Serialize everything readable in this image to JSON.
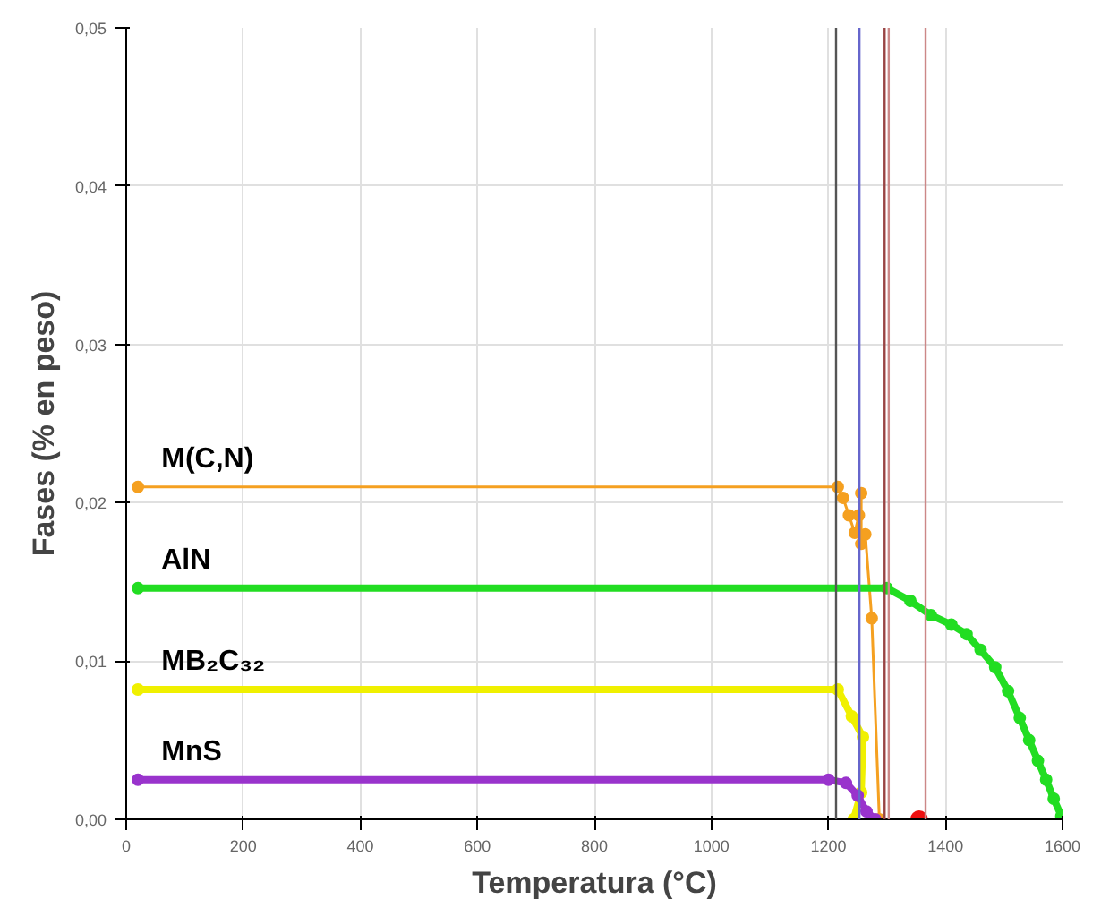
{
  "chart_data": {
    "type": "line",
    "xlabel": "Temperatura (°C)",
    "ylabel": "Fases (% en peso)",
    "xlim": [
      0,
      1600
    ],
    "ylim": [
      0,
      0.05
    ],
    "xticks": [
      0,
      200,
      400,
      600,
      800,
      1000,
      1200,
      1400,
      1600
    ],
    "yticks": [
      {
        "value": 0,
        "label": "0,00"
      },
      {
        "value": 0.01,
        "label": "0,01"
      },
      {
        "value": 0.02,
        "label": "0,02"
      },
      {
        "value": 0.03,
        "label": "0,03"
      },
      {
        "value": 0.04,
        "label": "0,04"
      },
      {
        "value": 0.05,
        "label": "0,05"
      }
    ],
    "grid": true,
    "marker": "circle",
    "line_style": "solid",
    "series": [
      {
        "name": "M(C,N)",
        "color": "#f5a020",
        "x": [
          20,
          1216,
          1225,
          1235,
          1245,
          1252,
          1256,
          1256,
          1263,
          1274,
          1287
        ],
        "values": [
          0.021,
          0.021,
          0.0203,
          0.0192,
          0.0181,
          0.0192,
          0.0206,
          0.0174,
          0.018,
          0.0127,
          0
        ]
      },
      {
        "name": "AlN",
        "color": "#22dd22",
        "x": [
          20,
          1300,
          1340,
          1375,
          1410,
          1436,
          1460,
          1485,
          1507,
          1527,
          1543,
          1558,
          1572,
          1585,
          1598
        ],
        "values": [
          0.0146,
          0.0146,
          0.0138,
          0.0129,
          0.0123,
          0.0117,
          0.0107,
          0.0096,
          0.0081,
          0.0064,
          0.005,
          0.0037,
          0.0025,
          0.0013,
          0.0002
        ]
      },
      {
        "name": "MB₂C₃₂",
        "color": "#f0f000",
        "x": [
          20,
          1216,
          1240,
          1259,
          1256,
          1243
        ],
        "values": [
          0.0082,
          0.0082,
          0.0065,
          0.0052,
          0.0017,
          0
        ]
      },
      {
        "name": "MnS",
        "color": "#9933cc",
        "x": [
          20,
          1200,
          1230,
          1250,
          1265,
          1280
        ],
        "values": [
          0.0025,
          0.0025,
          0.0023,
          0.0015,
          0.0005,
          0
        ]
      },
      {
        "type": "scatter",
        "color": "#ee1111",
        "x": [
          1355
        ],
        "values": [
          0
        ]
      }
    ],
    "ref_lines": [
      {
        "axis": "x",
        "value": 1213,
        "color": "#555555"
      },
      {
        "axis": "x",
        "value": 1253,
        "color": "#6666cc"
      },
      {
        "axis": "x",
        "value": 1296,
        "color": "#994444"
      },
      {
        "axis": "x",
        "value": 1303,
        "color": "#cc8888"
      },
      {
        "axis": "x",
        "value": 1366,
        "color": "#cc8888"
      }
    ]
  }
}
